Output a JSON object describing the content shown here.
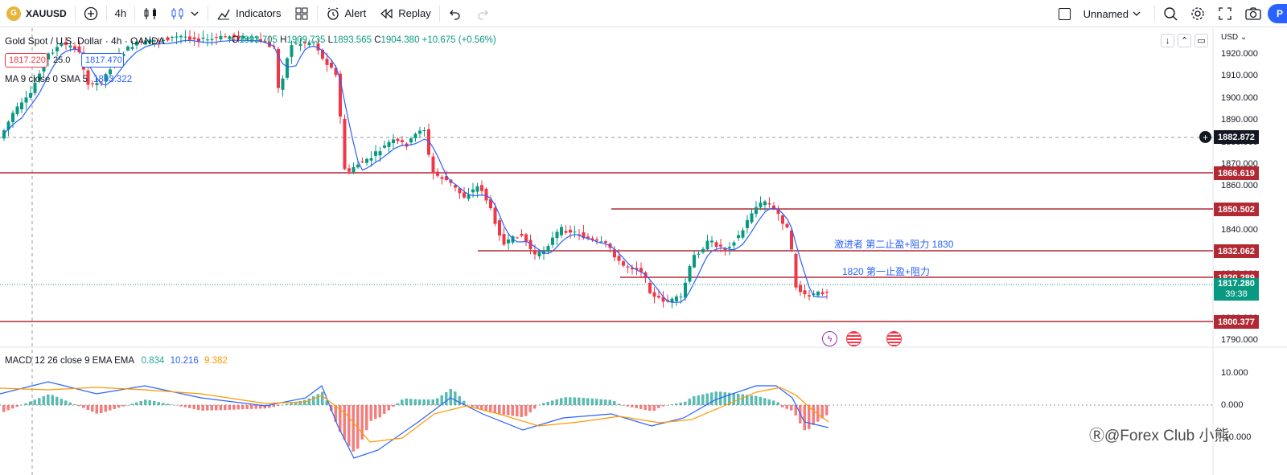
{
  "toolbar": {
    "symbol": "XAUUSD",
    "symbol_logo_text": "G",
    "interval": "4h",
    "indicators_label": "Indicators",
    "alert_label": "Alert",
    "replay_label": "Replay",
    "layout_name": "Unnamed",
    "publish_label": "P"
  },
  "legend": {
    "title": "Gold Spot / U.S. Dollar · 4h · OANDA",
    "open_key": "O",
    "open": "1893.705",
    "high_key": "H",
    "high": "1909.735",
    "low_key": "L",
    "low": "1893.565",
    "close_key": "C",
    "close": "1904.380",
    "change": "+10.675 (+0.56%)",
    "sell_price": "1817.220",
    "spread": "25.0",
    "buy_price": "1817.470"
  },
  "sma": {
    "label": "MA 9 close 0 SMA 5",
    "value": "1893.322"
  },
  "macd": {
    "label": "MACD 12 26 close 9 EMA EMA",
    "hist": "0.834",
    "macd": "10.216",
    "signal": "9.382"
  },
  "axis": {
    "currency": "USD",
    "ticks": [
      "1920.000",
      "1910.000",
      "1900.000",
      "1890.000",
      "1880.000",
      "1870.000",
      "1860.000",
      "1850.000",
      "1840.000",
      "1830.000",
      "1820.000",
      "1810.000",
      "1800.000",
      "1790.000"
    ],
    "macd_ticks": [
      "10.000",
      "0.000",
      "-10.000"
    ]
  },
  "price_tags": [
    {
      "value": "1882.872",
      "color": "#131722"
    },
    {
      "value": "1866.619",
      "color": "#b22833"
    },
    {
      "value": "1850.502",
      "color": "#b22833"
    },
    {
      "value": "1832.062",
      "color": "#b22833"
    },
    {
      "value": "1820.289",
      "color": "#b22833"
    },
    {
      "value": "1817.280",
      "color": "#089981"
    },
    {
      "value": "1800.377",
      "color": "#b22833"
    }
  ],
  "countdown": "39:38",
  "annotations": {
    "level_1830": "激进者 第二止盈+阻力 1830",
    "level_1820": "1820 第一止盈+阻力"
  },
  "watermark": "Ⓡ@Forex Club 小熊",
  "colors": {
    "up": "#089981",
    "down": "#f23645",
    "level": "#b22833",
    "ma": "#2962ff",
    "signal": "#ff9800"
  }
}
